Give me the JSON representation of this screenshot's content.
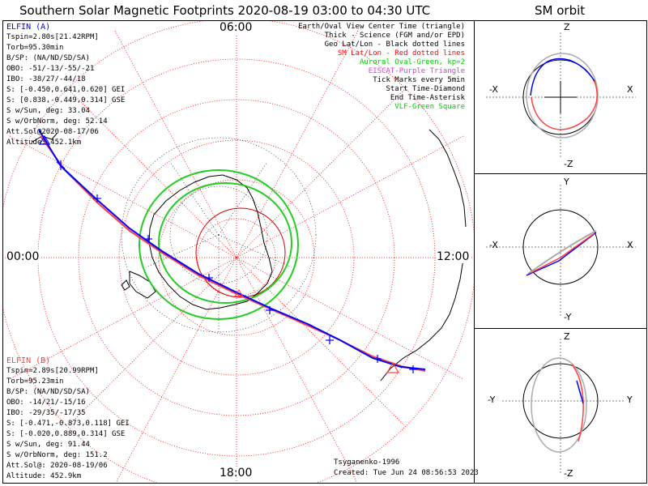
{
  "title": "Southern Solar Magnetic Footprints 2020-08-19 03:00 to 04:30 UTC",
  "orbit_title": "SM orbit",
  "hours": {
    "top": "06:00",
    "left": "00:00",
    "right": "12:00",
    "bottom": "18:00"
  },
  "elfin_a": {
    "name": "ELFIN (A)",
    "lines": [
      "Tspin=2.80s[21.42RPM]",
      "Torb=95.30min",
      "B/SP: (NA/ND/SD/SA)",
      "OBO: -51/-13/-55/-21",
      "IBO: -38/27/-44/18",
      "S: [-0.450,0.641,0.620] GEI",
      "S: [0.838,-0.449,0.314] GSE",
      "S w/Sun, deg: 33.04",
      "S w/OrbNorm, deg: 52.14",
      "Att.Sol@2020-08-17/06",
      "Altitude: 452.1km"
    ],
    "color": "#0000ff"
  },
  "elfin_b": {
    "name": "ELFIN (B)",
    "lines": [
      "Tspin=2.89s[20.99RPM]",
      "Torb=95.23min",
      "B/SP: (NA/ND/SD/SA)",
      "OBO: -14/21/-15/16",
      "IBO: -29/35/-17/35",
      "S: [-0.471,-0.873,0.118] GEI",
      "S: [-0.020,0.889,0.314] GSE",
      "S w/Sun, deg: 91.44",
      "S w/OrbNorm, deg: 151.2",
      "Att.Sol@: 2020-08-19/06",
      "Altitude: 452.9km"
    ],
    "color": "#ff4040"
  },
  "legend": [
    {
      "text": "Earth/Oval View Center Time (triangle)",
      "color": "#000000"
    },
    {
      "text": "Thick - Science (FGM and/or EPD)",
      "color": "#000000"
    },
    {
      "text": "Geo Lat/Lon - Black dotted lines",
      "color": "#000000"
    },
    {
      "text": "SM Lat/Lon - Red dotted lines",
      "color": "#ff0000"
    },
    {
      "text": "Auroral Oval-Green, kp=2",
      "color": "#00cc00"
    },
    {
      "text": "EISCAT-Purple Triangle",
      "color": "#cc44cc"
    },
    {
      "text": "Tick Marks every 5min",
      "color": "#000000"
    },
    {
      "text": "Start Time-Diamond",
      "color": "#000000"
    },
    {
      "text": "End Time-Asterisk",
      "color": "#000000"
    },
    {
      "text": "VLF-Green Square",
      "color": "#00cc00"
    }
  ],
  "footer": {
    "model": "Tsyganenko-1996",
    "created": "Created: Tue Jun 24 08:56:53 2023"
  },
  "orbit_panels": [
    {
      "top": "Z",
      "bottom": "-Z",
      "left": "-X",
      "right": "X"
    },
    {
      "top": "Y",
      "bottom": "-Y",
      "left": "-X",
      "right": "X"
    },
    {
      "top": "Z",
      "bottom": "-Z",
      "left": "-Y",
      "right": "Y"
    }
  ]
}
